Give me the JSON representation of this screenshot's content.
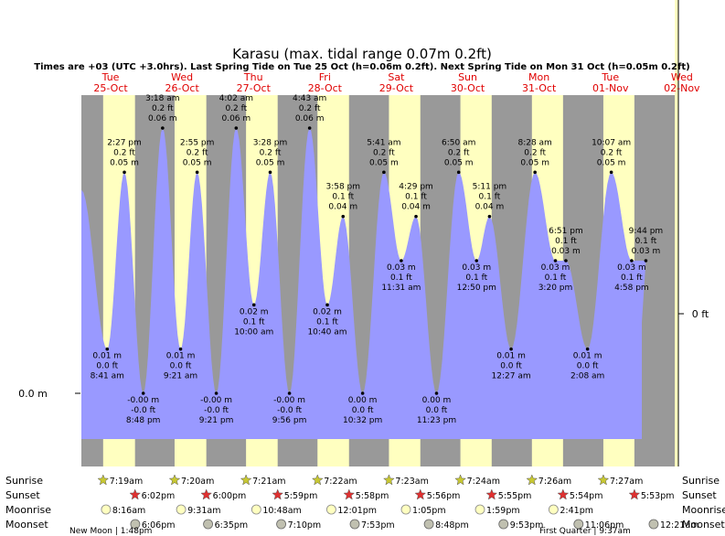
{
  "chart_data": {
    "type": "area",
    "title": "Karasu (max. tidal range 0.07m 0.2ft)",
    "subtitle": "Times are +03 (UTC +3.0hrs). Last Spring Tide on Tue 25 Oct (h=0.06m 0.2ft). Next Spring Tide on Mon 31 Oct (h=0.05m 0.2ft)",
    "ylim_m": [
      -0.012,
      0.07
    ],
    "axis_labels": {
      "left": "0.0 m",
      "right": "0 ft"
    },
    "days": [
      {
        "dow": "Tue",
        "date": "25-Oct"
      },
      {
        "dow": "Wed",
        "date": "26-Oct"
      },
      {
        "dow": "Thu",
        "date": "27-Oct"
      },
      {
        "dow": "Fri",
        "date": "28-Oct"
      },
      {
        "dow": "Sat",
        "date": "29-Oct"
      },
      {
        "dow": "Sun",
        "date": "30-Oct"
      },
      {
        "dow": "Mon",
        "date": "31-Oct"
      },
      {
        "dow": "Tue",
        "date": "01-Nov"
      },
      {
        "dow": "Wed",
        "date": "02-Nov"
      }
    ],
    "tides": [
      {
        "day": 0,
        "time": "8:41 am",
        "h": 0.01,
        "m": "0.01 m",
        "ft": "0.0 ft",
        "kind": "low"
      },
      {
        "day": 0,
        "time": "2:27 pm",
        "h": 0.05,
        "m": "0.05 m",
        "ft": "0.2 ft",
        "kind": "high"
      },
      {
        "day": 0,
        "time": "8:48 pm",
        "h": 0.0,
        "m": "-0.00 m",
        "ft": "-0.0 ft",
        "kind": "low"
      },
      {
        "day": 1,
        "time": "3:18 am",
        "h": 0.06,
        "m": "0.06 m",
        "ft": "0.2 ft",
        "kind": "high"
      },
      {
        "day": 1,
        "time": "9:21 am",
        "h": 0.01,
        "m": "0.01 m",
        "ft": "0.0 ft",
        "kind": "low"
      },
      {
        "day": 1,
        "time": "2:55 pm",
        "h": 0.05,
        "m": "0.05 m",
        "ft": "0.2 ft",
        "kind": "high"
      },
      {
        "day": 1,
        "time": "9:21 pm",
        "h": 0.0,
        "m": "-0.00 m",
        "ft": "-0.0 ft",
        "kind": "low"
      },
      {
        "day": 2,
        "time": "4:02 am",
        "h": 0.06,
        "m": "0.06 m",
        "ft": "0.2 ft",
        "kind": "high"
      },
      {
        "day": 2,
        "time": "10:00 am",
        "h": 0.02,
        "m": "0.02 m",
        "ft": "0.1 ft",
        "kind": "low"
      },
      {
        "day": 2,
        "time": "3:28 pm",
        "h": 0.05,
        "m": "0.05 m",
        "ft": "0.2 ft",
        "kind": "high"
      },
      {
        "day": 2,
        "time": "9:56 pm",
        "h": 0.0,
        "m": "-0.00 m",
        "ft": "-0.0 ft",
        "kind": "low"
      },
      {
        "day": 3,
        "time": "4:43 am",
        "h": 0.06,
        "m": "0.06 m",
        "ft": "0.2 ft",
        "kind": "high"
      },
      {
        "day": 3,
        "time": "10:40 am",
        "h": 0.02,
        "m": "0.02 m",
        "ft": "0.1 ft",
        "kind": "low"
      },
      {
        "day": 3,
        "time": "3:58 pm",
        "h": 0.04,
        "m": "0.04 m",
        "ft": "0.1 ft",
        "kind": "high"
      },
      {
        "day": 3,
        "time": "10:32 pm",
        "h": 0.0,
        "m": "0.00 m",
        "ft": "0.0 ft",
        "kind": "low"
      },
      {
        "day": 4,
        "time": "5:41 am",
        "h": 0.05,
        "m": "0.05 m",
        "ft": "0.2 ft",
        "kind": "high"
      },
      {
        "day": 4,
        "time": "11:31 am",
        "h": 0.03,
        "m": "0.03 m",
        "ft": "0.1 ft",
        "kind": "low"
      },
      {
        "day": 4,
        "time": "4:29 pm",
        "h": 0.04,
        "m": "0.04 m",
        "ft": "0.1 ft",
        "kind": "high"
      },
      {
        "day": 4,
        "time": "11:23 pm",
        "h": 0.0,
        "m": "0.00 m",
        "ft": "0.0 ft",
        "kind": "low"
      },
      {
        "day": 5,
        "time": "6:50 am",
        "h": 0.05,
        "m": "0.05 m",
        "ft": "0.2 ft",
        "kind": "high"
      },
      {
        "day": 5,
        "time": "12:50 pm",
        "h": 0.03,
        "m": "0.03 m",
        "ft": "0.1 ft",
        "kind": "low"
      },
      {
        "day": 5,
        "time": "5:11 pm",
        "h": 0.04,
        "m": "0.04 m",
        "ft": "0.1 ft",
        "kind": "high"
      },
      {
        "day": 6,
        "time": "12:27 am",
        "h": 0.01,
        "m": "0.01 m",
        "ft": "0.0 ft",
        "kind": "low"
      },
      {
        "day": 6,
        "time": "8:28 am",
        "h": 0.05,
        "m": "0.05 m",
        "ft": "0.2 ft",
        "kind": "high"
      },
      {
        "day": 6,
        "time": "3:20 pm",
        "h": 0.03,
        "m": "0.03 m",
        "ft": "0.1 ft",
        "kind": "low"
      },
      {
        "day": 6,
        "time": "6:51 pm",
        "h": 0.03,
        "m": "0.03 m",
        "ft": "0.1 ft",
        "kind": "high"
      },
      {
        "day": 7,
        "time": "2:08 am",
        "h": 0.01,
        "m": "0.01 m",
        "ft": "0.0 ft",
        "kind": "low"
      },
      {
        "day": 7,
        "time": "10:07 am",
        "h": 0.05,
        "m": "0.05 m",
        "ft": "0.2 ft",
        "kind": "high"
      },
      {
        "day": 7,
        "time": "4:58 pm",
        "h": 0.03,
        "m": "0.03 m",
        "ft": "0.1 ft",
        "kind": "low"
      },
      {
        "day": 7,
        "time": "9:44 pm",
        "h": 0.03,
        "m": "0.03 m",
        "ft": "0.1 ft",
        "kind": "high"
      }
    ],
    "rows": {
      "labels": [
        "Sunrise",
        "Sunset",
        "Moonrise",
        "Moonset"
      ],
      "sunrise": [
        "7:19am",
        "7:20am",
        "7:21am",
        "7:22am",
        "7:23am",
        "7:24am",
        "7:26am",
        "7:27am"
      ],
      "sunset": [
        "6:02pm",
        "6:00pm",
        "5:59pm",
        "5:58pm",
        "5:56pm",
        "5:55pm",
        "5:54pm",
        "5:53pm"
      ],
      "moonrise": [
        "8:16am",
        "9:31am",
        "10:48am",
        "12:01pm",
        "1:05pm",
        "1:59pm",
        "2:41pm"
      ],
      "moonset": [
        "6:06pm",
        "6:35pm",
        "7:10pm",
        "7:53pm",
        "8:48pm",
        "9:53pm",
        "11:06pm",
        "12:21am"
      ],
      "moonrise_days": [
        0,
        1,
        2,
        3,
        4,
        5,
        6
      ],
      "moonset_days": [
        0,
        1,
        2,
        3,
        4,
        5,
        6,
        7
      ],
      "moonset_last_day": 8
    },
    "moon_phases": [
      {
        "label": "New Moon | 1:48pm"
      },
      {
        "label": "First Quarter | 9:37am"
      }
    ],
    "colors": {
      "night": "#999999",
      "day": "#ffffc0",
      "water": "#9999ff",
      "sunrise_star": "#c8c832",
      "sunset_star": "#e03030",
      "day_label": "#e00000"
    }
  }
}
